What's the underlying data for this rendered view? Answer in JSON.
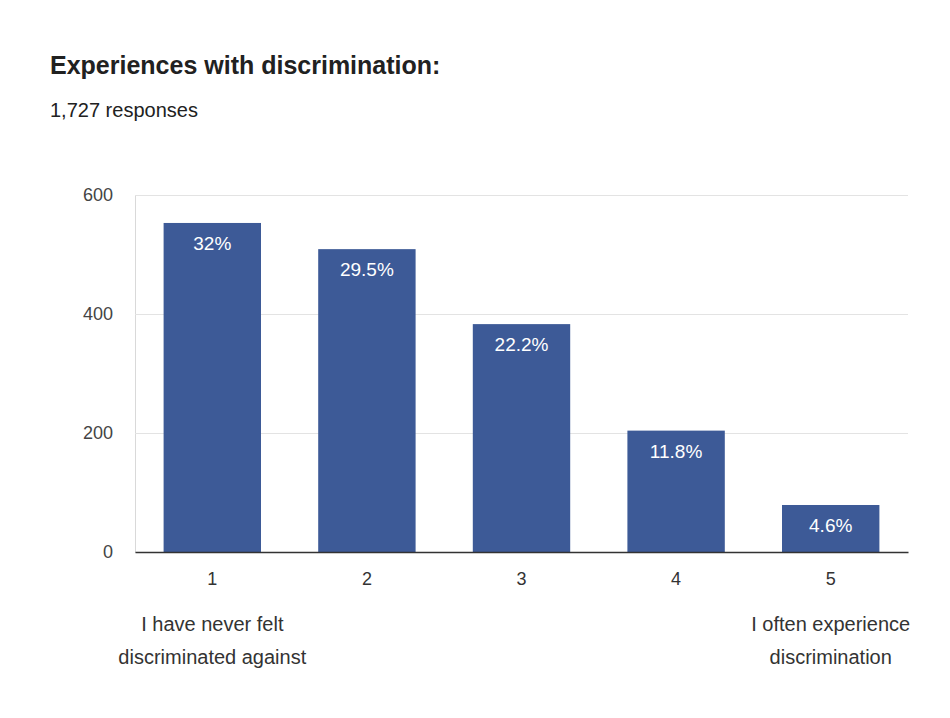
{
  "chart_data": {
    "type": "bar",
    "title": "Experiences with discrimination:",
    "subtitle": "1,727 responses",
    "categories": [
      "1",
      "2",
      "3",
      "4",
      "5"
    ],
    "values": [
      553,
      509,
      383,
      204,
      79
    ],
    "percent_labels": [
      "32%",
      "29.5%",
      "22.2%",
      "11.8%",
      "4.6%"
    ],
    "low_label": [
      "I have never felt",
      "discriminated against"
    ],
    "high_label": [
      "I often experience",
      "discrimination"
    ],
    "color": "#3d5a97",
    "ylim": [
      0,
      600
    ],
    "yticks": [
      0,
      200,
      400,
      600
    ],
    "grid": true
  }
}
